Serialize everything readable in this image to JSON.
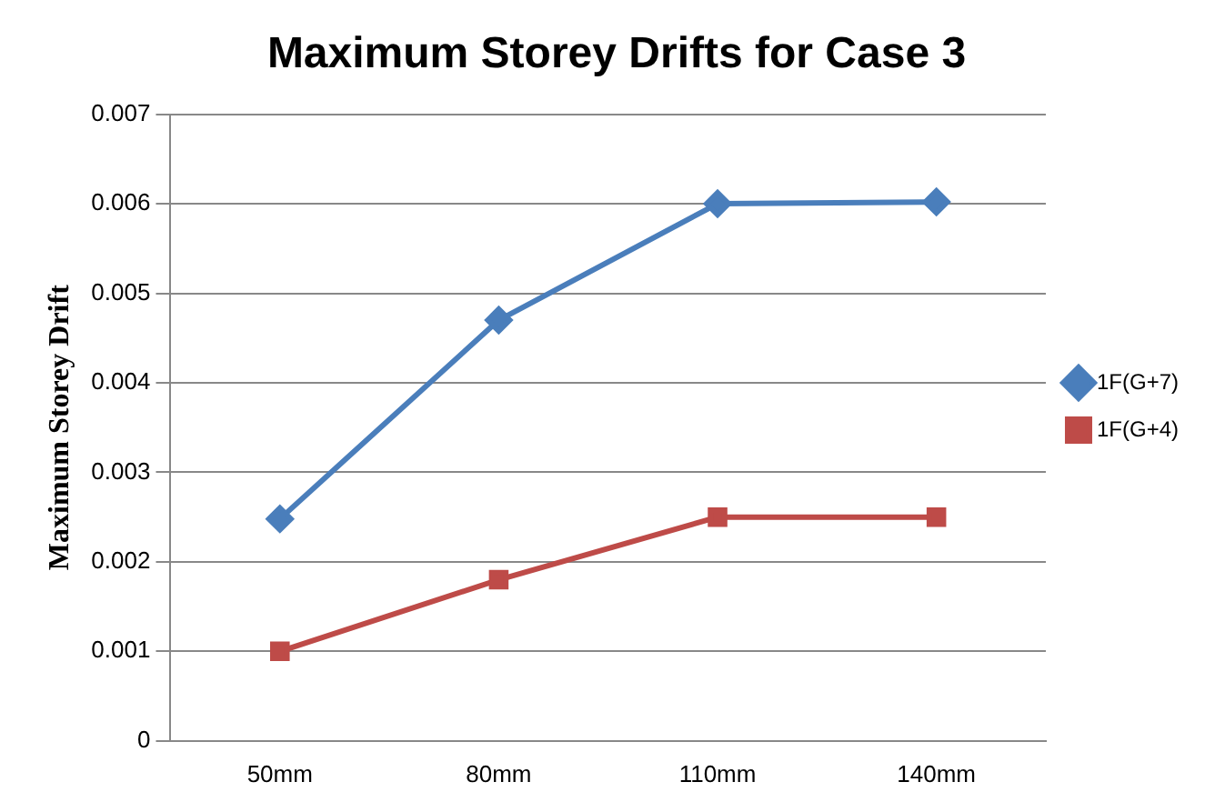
{
  "chart_data": {
    "type": "line",
    "title": "Maximum Storey Drifts for Case 3",
    "ylabel": "Maximum Storey Drift",
    "categories": [
      "50mm",
      "80mm",
      "110mm",
      "140mm"
    ],
    "series": [
      {
        "name": "1F(G+7)",
        "color": "#4a7ebb",
        "marker": "diamond",
        "values": [
          0.00248,
          0.0047,
          0.006,
          0.00602
        ]
      },
      {
        "name": "1F(G+4)",
        "color": "#be4b48",
        "marker": "square",
        "values": [
          0.001,
          0.0018,
          0.0025,
          0.0025
        ]
      }
    ],
    "ylim": [
      0,
      0.007
    ],
    "yticks": [
      0,
      0.001,
      0.002,
      0.003,
      0.004,
      0.005,
      0.006,
      0.007
    ],
    "grid": "y",
    "legend": "right",
    "line_style": "solid"
  }
}
